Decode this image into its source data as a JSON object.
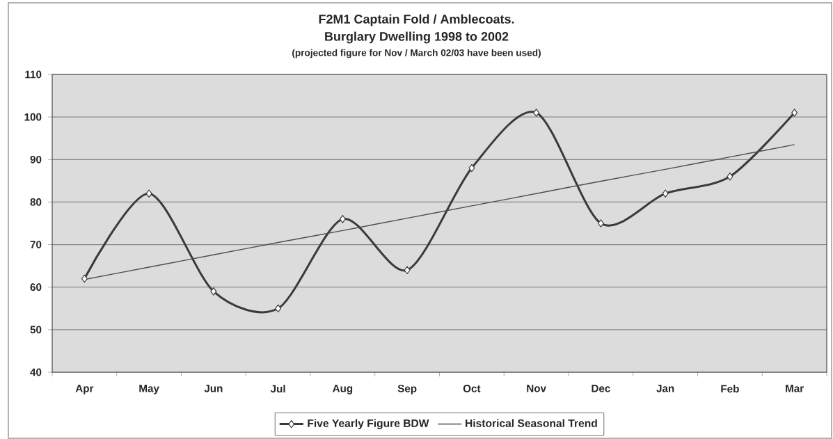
{
  "chart_data": {
    "type": "line",
    "title": "F2M1 Captain Fold / Amblecoats.",
    "subtitle": "Burglary Dwelling 1998 to 2002",
    "annotations": [
      "(projected figure for Nov / March 02/03 have been used)"
    ],
    "categories": [
      "Apr",
      "May",
      "Jun",
      "Jul",
      "Aug",
      "Sep",
      "Oct",
      "Nov",
      "Dec",
      "Jan",
      "Feb",
      "Mar"
    ],
    "series": [
      {
        "name": "Five Yearly Figure BDW",
        "color": "#3a3a3a",
        "marker": "diamond",
        "values": [
          62,
          82,
          59,
          55,
          76,
          64,
          88,
          101,
          75,
          82,
          86,
          101
        ]
      },
      {
        "name": "Historical Seasonal Trend",
        "color": "#4d4d4d",
        "marker": "none",
        "values": [
          61.8,
          64.7,
          67.6,
          70.5,
          73.3,
          76.2,
          79.1,
          82.0,
          84.9,
          87.7,
          90.6,
          93.5
        ]
      }
    ],
    "ylim": [
      40,
      110
    ],
    "yticks": [
      40,
      50,
      60,
      70,
      80,
      90,
      100,
      110
    ],
    "grid": "y",
    "legend": "bottom"
  }
}
